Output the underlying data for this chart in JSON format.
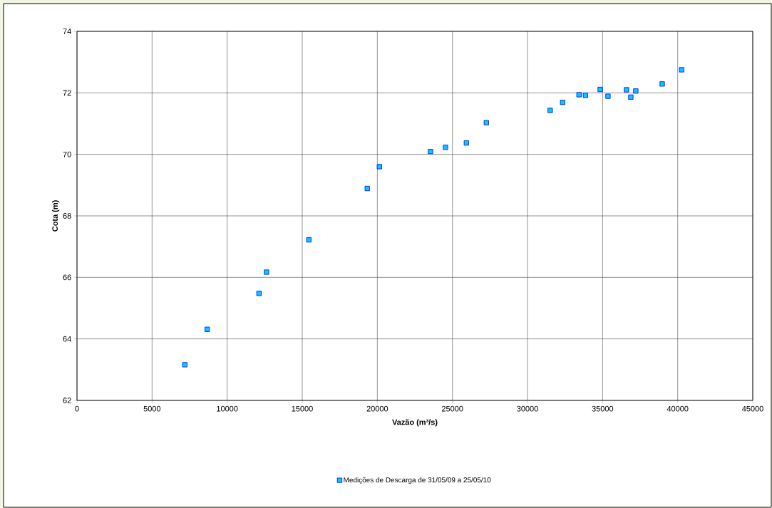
{
  "chart_data": {
    "type": "scatter",
    "xlabel": "Vazão (m³/s)",
    "ylabel": "Cota (m)",
    "x": [
      7180,
      8670,
      12120,
      12620,
      15440,
      19330,
      20140,
      23540,
      24540,
      25930,
      27260,
      31510,
      32340,
      33430,
      33860,
      34840,
      35360,
      36590,
      36880,
      37210,
      38970,
      40260
    ],
    "series": [
      {
        "name": "Medições de Descarga de 31/05/09 a 25/05/10",
        "color": "#00ccff",
        "values": [
          63.16,
          64.31,
          65.48,
          66.17,
          67.22,
          68.89,
          69.6,
          70.09,
          70.23,
          70.37,
          71.03,
          71.43,
          71.69,
          71.94,
          71.92,
          72.11,
          71.89,
          72.1,
          71.86,
          72.06,
          72.29,
          72.75
        ]
      }
    ],
    "xlim": [
      0,
      45000
    ],
    "ylim": [
      62,
      74
    ],
    "xticks": [
      0,
      5000,
      10000,
      15000,
      20000,
      25000,
      30000,
      35000,
      40000,
      45000
    ],
    "yticks": [
      62,
      64,
      66,
      68,
      70,
      72,
      74
    ],
    "grid": true,
    "legend": "bottom",
    "marker": "square"
  }
}
